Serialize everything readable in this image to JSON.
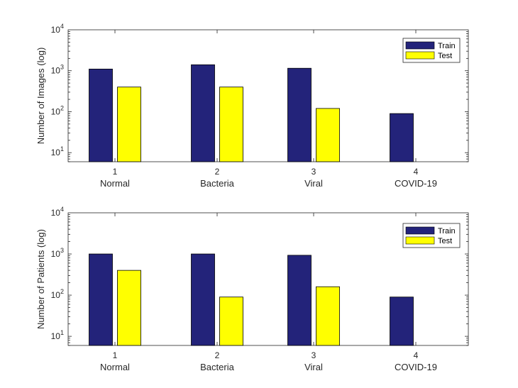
{
  "chart_data": [
    {
      "type": "bar",
      "scale": "log",
      "ylabel": "Number of Images (log)",
      "ylim": [
        6,
        10000
      ],
      "yticks": [
        {
          "value": 10,
          "base": "10",
          "exp": "1"
        },
        {
          "value": 100,
          "base": "10",
          "exp": "2"
        },
        {
          "value": 1000,
          "base": "10",
          "exp": "3"
        },
        {
          "value": 10000,
          "base": "10",
          "exp": "4"
        }
      ],
      "categories": [
        "1",
        "2",
        "3",
        "4"
      ],
      "category_names": [
        "Normal",
        "Bacteria",
        "Viral",
        "COVID-19"
      ],
      "series": [
        {
          "name": "Train",
          "values": [
            1100,
            1400,
            1150,
            90
          ]
        },
        {
          "name": "Test",
          "values": [
            400,
            400,
            120,
            null
          ]
        }
      ],
      "legend": {
        "position": "top-right"
      }
    },
    {
      "type": "bar",
      "scale": "log",
      "ylabel": "Number of Patients (log)",
      "ylim": [
        6,
        10000
      ],
      "yticks": [
        {
          "value": 10,
          "base": "10",
          "exp": "1"
        },
        {
          "value": 100,
          "base": "10",
          "exp": "2"
        },
        {
          "value": 1000,
          "base": "10",
          "exp": "3"
        },
        {
          "value": 10000,
          "base": "10",
          "exp": "4"
        }
      ],
      "categories": [
        "1",
        "2",
        "3",
        "4"
      ],
      "category_names": [
        "Normal",
        "Bacteria",
        "Viral",
        "COVID-19"
      ],
      "series": [
        {
          "name": "Train",
          "values": [
            1000,
            1000,
            930,
            90
          ]
        },
        {
          "name": "Test",
          "values": [
            400,
            90,
            160,
            null
          ]
        }
      ],
      "legend": {
        "position": "top-right"
      }
    }
  ],
  "colors": {
    "train": "#23237a",
    "test": "#ffff00",
    "axis": "#262626"
  }
}
